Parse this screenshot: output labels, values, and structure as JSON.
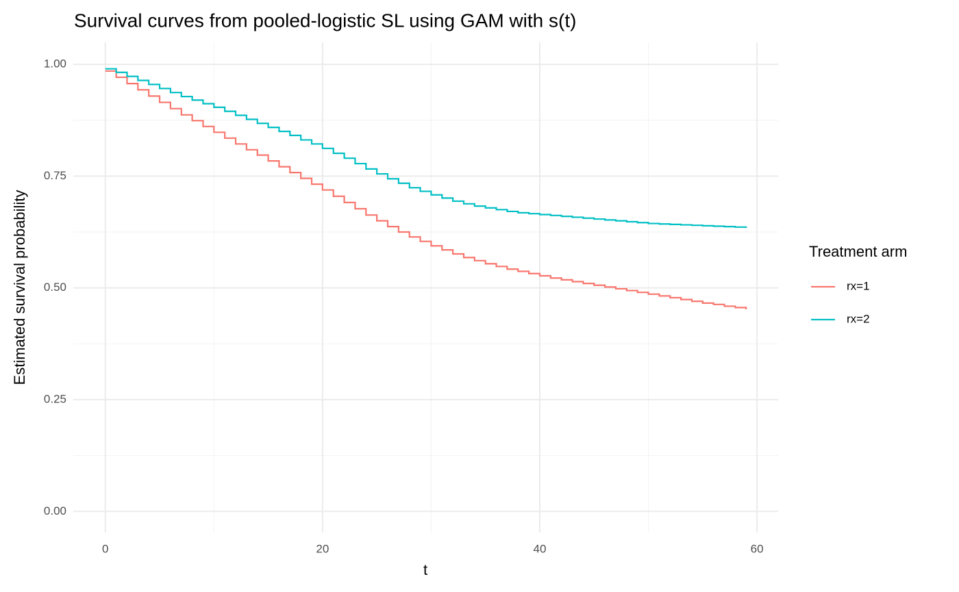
{
  "chart_data": {
    "type": "step",
    "title": "Survival curves from pooled-logistic SL using GAM with s(t)",
    "xlabel": "t",
    "ylabel": "Estimated survival probability",
    "legend_title": "Treatment arm",
    "legend": "right",
    "grid": true,
    "x": [
      0,
      1,
      2,
      3,
      4,
      5,
      6,
      7,
      8,
      9,
      10,
      11,
      12,
      13,
      14,
      15,
      16,
      17,
      18,
      19,
      20,
      21,
      22,
      23,
      24,
      25,
      26,
      27,
      28,
      29,
      30,
      31,
      32,
      33,
      34,
      35,
      36,
      37,
      38,
      39,
      40,
      41,
      42,
      43,
      44,
      45,
      46,
      47,
      48,
      49,
      50,
      51,
      52,
      53,
      54,
      55,
      56,
      57,
      58,
      59
    ],
    "series": [
      {
        "name": "rx=1",
        "color": "#f8766d",
        "values": [
          0.985,
          0.971,
          0.957,
          0.943,
          0.929,
          0.915,
          0.901,
          0.887,
          0.874,
          0.861,
          0.848,
          0.835,
          0.822,
          0.809,
          0.797,
          0.784,
          0.771,
          0.758,
          0.745,
          0.732,
          0.719,
          0.705,
          0.691,
          0.677,
          0.663,
          0.65,
          0.637,
          0.625,
          0.614,
          0.604,
          0.594,
          0.585,
          0.576,
          0.568,
          0.561,
          0.554,
          0.548,
          0.542,
          0.537,
          0.532,
          0.527,
          0.522,
          0.518,
          0.514,
          0.51,
          0.506,
          0.502,
          0.498,
          0.494,
          0.49,
          0.486,
          0.482,
          0.478,
          0.474,
          0.47,
          0.466,
          0.463,
          0.459,
          0.456,
          0.452
        ]
      },
      {
        "name": "rx=2",
        "color": "#00bfc4",
        "values": [
          0.99,
          0.982,
          0.973,
          0.964,
          0.955,
          0.946,
          0.937,
          0.928,
          0.92,
          0.912,
          0.904,
          0.895,
          0.886,
          0.877,
          0.868,
          0.859,
          0.85,
          0.841,
          0.831,
          0.822,
          0.812,
          0.801,
          0.79,
          0.778,
          0.766,
          0.755,
          0.744,
          0.734,
          0.724,
          0.716,
          0.708,
          0.701,
          0.694,
          0.688,
          0.683,
          0.679,
          0.675,
          0.671,
          0.668,
          0.666,
          0.664,
          0.662,
          0.66,
          0.658,
          0.656,
          0.654,
          0.652,
          0.65,
          0.648,
          0.646,
          0.644,
          0.643,
          0.642,
          0.641,
          0.64,
          0.639,
          0.638,
          0.637,
          0.636,
          0.634
        ]
      }
    ],
    "xlim": [
      -2.95,
      61.95
    ],
    "ylim": [
      -0.047,
      1.049
    ],
    "xticks": [
      0,
      20,
      40,
      60
    ],
    "xminorticks": [
      10,
      30,
      50
    ],
    "yticks": [
      {
        "value": 0,
        "label": "0.00"
      },
      {
        "value": 0.25,
        "label": "0.25"
      },
      {
        "value": 0.5,
        "label": "0.50"
      },
      {
        "value": 0.75,
        "label": "0.75"
      },
      {
        "value": 1,
        "label": "1.00"
      }
    ],
    "yminorticks": [
      0.125,
      0.375,
      0.625,
      0.875
    ]
  }
}
